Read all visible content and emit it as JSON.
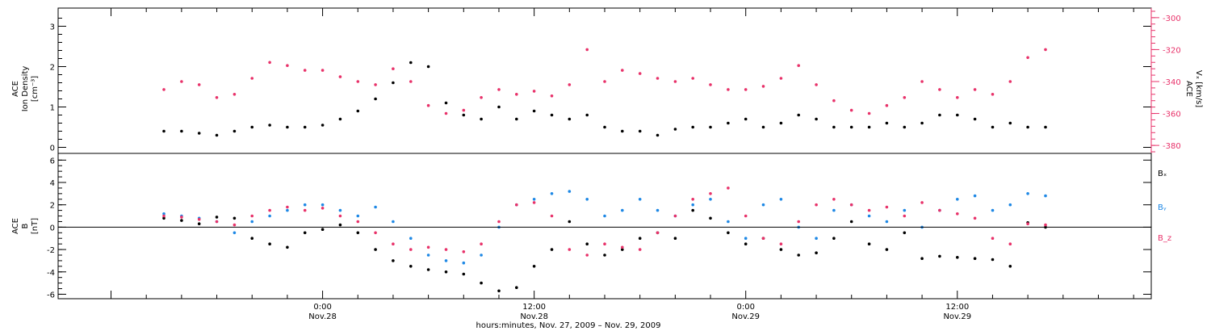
{
  "chart_data": [
    {
      "type": "scatter",
      "panel": "top",
      "ylabel_left": [
        "ACE",
        "Ion Density",
        "[cm⁻³]"
      ],
      "ylabel_right": [
        "ACE",
        "Vₓ [km/s]"
      ],
      "ylim_left": [
        -0.15,
        3.45
      ],
      "ylim_right": [
        -385,
        -294
      ],
      "yticks_left": [
        "0",
        "1",
        "2",
        "3"
      ],
      "yticks_right": [
        "-300",
        "-320",
        "-340",
        "-360",
        "-380"
      ],
      "series": [
        {
          "axis": "left",
          "color": "#000000",
          "x": [
            -9,
            -8,
            -7,
            -6,
            -5,
            -4,
            -3,
            -2,
            -1,
            0,
            1,
            2,
            3,
            4,
            5,
            6,
            7,
            8,
            9,
            10,
            11,
            12,
            13,
            14,
            15,
            16,
            17,
            18,
            19,
            20,
            21,
            22,
            23,
            24,
            25,
            26,
            27,
            28,
            29,
            30,
            31,
            32,
            33,
            34,
            35,
            36,
            37,
            38,
            39,
            40,
            41
          ],
          "values": [
            0.4,
            0.4,
            0.35,
            0.3,
            0.4,
            0.5,
            0.55,
            0.5,
            0.5,
            0.55,
            0.7,
            0.9,
            1.2,
            1.6,
            2.1,
            2.0,
            1.1,
            0.8,
            0.7,
            1.0,
            0.7,
            0.9,
            0.8,
            0.7,
            0.8,
            0.5,
            0.4,
            0.4,
            0.3,
            0.45,
            0.5,
            0.5,
            0.6,
            0.7,
            0.5,
            0.6,
            0.8,
            0.7,
            0.5,
            0.5,
            0.5,
            0.6,
            0.5,
            0.6,
            0.8,
            0.8,
            0.7,
            0.5,
            0.6,
            0.5,
            0.5
          ]
        },
        {
          "axis": "right",
          "color": "#e8326a",
          "x": [
            -9,
            -8,
            -7,
            -6,
            -5,
            -4,
            -3,
            -2,
            -1,
            0,
            1,
            2,
            3,
            4,
            5,
            6,
            7,
            8,
            9,
            10,
            11,
            12,
            13,
            14,
            15,
            16,
            17,
            18,
            19,
            20,
            21,
            22,
            23,
            24,
            25,
            26,
            27,
            28,
            29,
            30,
            31,
            32,
            33,
            34,
            35,
            36,
            37,
            38,
            39,
            40,
            41
          ],
          "values": [
            -345,
            -340,
            -342,
            -350,
            -348,
            -338,
            -328,
            -330,
            -333,
            -333,
            -337,
            -340,
            -342,
            -332,
            -340,
            -355,
            -360,
            -358,
            -350,
            -345,
            -348,
            -346,
            -349,
            -342,
            -320,
            -340,
            -333,
            -335,
            -338,
            -340,
            -338,
            -342,
            -345,
            -345,
            -343,
            -338,
            -330,
            -342,
            -352,
            -358,
            -360,
            -355,
            -350,
            -340,
            -345,
            -350,
            -345,
            -348,
            -340,
            -325,
            -320
          ]
        }
      ]
    },
    {
      "type": "scatter",
      "panel": "bottom",
      "ylabel": [
        "ACE",
        "B",
        "[nT]"
      ],
      "ylim": [
        -6.4,
        6.6
      ],
      "yticks": [
        "6",
        "4",
        "2",
        "0",
        "-2",
        "-4",
        "-6"
      ],
      "zero_line": true,
      "xticks": [
        "0:00",
        "12:00",
        "0:00",
        "12:00"
      ],
      "xtick_dates": [
        "Nov.28",
        "Nov.28",
        "Nov.29",
        "Nov.29"
      ],
      "xtick_hours": [
        0,
        12,
        24,
        36
      ],
      "xlim": [
        -15,
        47
      ],
      "xlabel": "hours:minutes, Nov. 27, 2009 – Nov. 29, 2009",
      "series": [
        {
          "name": "Bₓ",
          "color": "#000000",
          "x": [
            -9,
            -8,
            -7,
            -6,
            -5,
            -4,
            -3,
            -2,
            -1,
            0,
            1,
            2,
            3,
            4,
            5,
            6,
            7,
            8,
            9,
            10,
            11,
            12,
            13,
            14,
            15,
            16,
            17,
            18,
            19,
            20,
            21,
            22,
            23,
            24,
            25,
            26,
            27,
            28,
            29,
            30,
            31,
            32,
            33,
            34,
            35,
            36,
            37,
            38,
            39,
            40,
            41
          ],
          "values": [
            0.8,
            0.6,
            0.3,
            0.9,
            0.8,
            -1.0,
            -1.5,
            -1.8,
            -0.5,
            -0.2,
            0.2,
            -0.5,
            -2.0,
            -3.0,
            -3.5,
            -3.8,
            -4.0,
            -4.2,
            -5.0,
            -5.7,
            -5.4,
            -3.5,
            -2.0,
            0.5,
            -1.5,
            -2.5,
            -2.0,
            -1.0,
            -0.5,
            -1.0,
            1.5,
            0.8,
            -0.5,
            -1.5,
            -1.0,
            -2.0,
            -2.5,
            -2.3,
            -1.0,
            0.5,
            -1.5,
            -2.0,
            -0.5,
            -2.8,
            -2.6,
            -2.7,
            -2.8,
            -2.9,
            -3.5,
            0.4,
            0.0
          ]
        },
        {
          "name": "Bᵧ",
          "color": "#1e88e5",
          "x": [
            -9,
            -8,
            -7,
            -6,
            -5,
            -4,
            -3,
            -2,
            -1,
            0,
            1,
            2,
            3,
            4,
            5,
            6,
            7,
            8,
            9,
            10,
            11,
            12,
            13,
            14,
            15,
            16,
            17,
            18,
            19,
            20,
            21,
            22,
            23,
            24,
            25,
            26,
            27,
            28,
            29,
            30,
            31,
            32,
            33,
            34,
            35,
            36,
            37,
            38,
            39,
            40,
            41
          ],
          "values": [
            1.2,
            1.0,
            0.8,
            0.5,
            -0.5,
            0.5,
            1.0,
            1.5,
            2.0,
            2.0,
            1.5,
            1.0,
            1.8,
            0.5,
            -1.0,
            -2.5,
            -3.0,
            -3.2,
            -2.5,
            0.0,
            2.0,
            2.5,
            3.0,
            3.2,
            2.5,
            1.0,
            1.5,
            2.5,
            1.5,
            1.0,
            2.0,
            2.5,
            0.5,
            -1.0,
            2.0,
            2.5,
            0.0,
            -1.0,
            1.5,
            2.0,
            1.0,
            0.5,
            1.5,
            0.0,
            1.5,
            2.5,
            2.8,
            1.5,
            2.0,
            3.0,
            2.8
          ]
        },
        {
          "name": "B_z",
          "color": "#e8326a",
          "x": [
            -9,
            -8,
            -7,
            -6,
            -5,
            -4,
            -3,
            -2,
            -1,
            0,
            1,
            2,
            3,
            4,
            5,
            6,
            7,
            8,
            9,
            10,
            11,
            12,
            13,
            14,
            15,
            16,
            17,
            18,
            19,
            20,
            21,
            22,
            23,
            24,
            25,
            26,
            27,
            28,
            29,
            30,
            31,
            32,
            33,
            34,
            35,
            36,
            37,
            38,
            39,
            40,
            41
          ],
          "values": [
            1.0,
            0.9,
            0.7,
            0.5,
            0.2,
            1.0,
            1.5,
            1.8,
            1.5,
            1.7,
            1.0,
            0.5,
            -0.5,
            -1.5,
            -2.0,
            -1.8,
            -2.0,
            -2.2,
            -1.5,
            0.5,
            2.0,
            2.2,
            1.0,
            -2.0,
            -2.5,
            -1.5,
            -1.8,
            -2.0,
            -0.5,
            1.0,
            2.5,
            3.0,
            3.5,
            1.0,
            -1.0,
            -1.5,
            0.5,
            2.0,
            2.5,
            2.0,
            1.5,
            1.8,
            1.0,
            2.2,
            1.5,
            1.2,
            0.8,
            -1.0,
            -1.5,
            0.3,
            0.2
          ]
        }
      ]
    }
  ]
}
